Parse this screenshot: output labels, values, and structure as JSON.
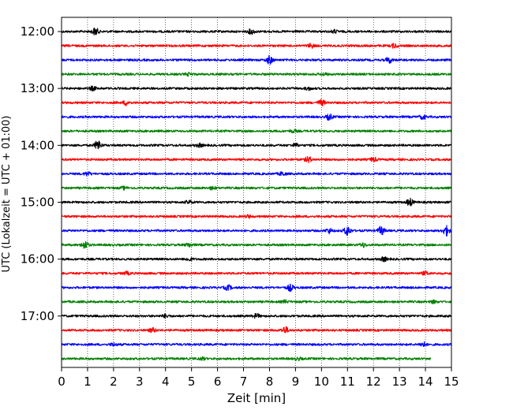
{
  "chart_data": {
    "type": "line",
    "title": "",
    "xlabel": "Zeit  [min]",
    "ylabel": "UTC (Lokalzeit = UTC + 01:00)",
    "xlim": [
      0,
      15
    ],
    "x_ticks": [
      0,
      1,
      2,
      3,
      4,
      5,
      6,
      7,
      8,
      9,
      10,
      11,
      12,
      13,
      14,
      15
    ],
    "y_tick_labels": [
      "12:00",
      "13:00",
      "14:00",
      "15:00",
      "16:00",
      "17:00"
    ],
    "grid": "vertical dotted at each minute",
    "colors": [
      "#000000",
      "#ff0000",
      "#0000ff",
      "#008000"
    ],
    "traces": [
      {
        "start": "12:00",
        "color": "#000000",
        "x_end": 15,
        "bursts": [
          [
            1.3,
            1.8
          ],
          [
            7.3,
            1.2
          ],
          [
            10.5,
            0.7
          ]
        ]
      },
      {
        "start": "12:15",
        "color": "#ff0000",
        "x_end": 15,
        "bursts": [
          [
            9.6,
            1.0
          ],
          [
            12.8,
            1.0
          ]
        ]
      },
      {
        "start": "12:30",
        "color": "#0000ff",
        "x_end": 15,
        "bursts": [
          [
            8.0,
            2.0
          ],
          [
            12.6,
            1.4
          ]
        ]
      },
      {
        "start": "12:45",
        "color": "#008000",
        "x_end": 15,
        "bursts": [
          [
            4.9,
            0.6
          ],
          [
            10.1,
            0.6
          ]
        ]
      },
      {
        "start": "13:00",
        "color": "#000000",
        "x_end": 15,
        "bursts": [
          [
            1.2,
            0.9
          ],
          [
            9.5,
            0.7
          ]
        ]
      },
      {
        "start": "13:15",
        "color": "#ff0000",
        "x_end": 15,
        "bursts": [
          [
            2.5,
            1.2
          ],
          [
            10.0,
            1.4
          ]
        ]
      },
      {
        "start": "13:30",
        "color": "#0000ff",
        "x_end": 15,
        "bursts": [
          [
            10.3,
            1.4
          ],
          [
            13.9,
            1.0
          ]
        ]
      },
      {
        "start": "13:45",
        "color": "#008000",
        "x_end": 15,
        "bursts": [
          [
            8.9,
            0.6
          ]
        ]
      },
      {
        "start": "14:00",
        "color": "#000000",
        "x_end": 15,
        "bursts": [
          [
            1.4,
            2.4
          ],
          [
            5.3,
            0.8
          ],
          [
            9.0,
            0.8
          ]
        ]
      },
      {
        "start": "14:15",
        "color": "#ff0000",
        "x_end": 15,
        "bursts": [
          [
            9.5,
            1.4
          ],
          [
            12.0,
            1.0
          ]
        ]
      },
      {
        "start": "14:30",
        "color": "#0000ff",
        "x_end": 15,
        "bursts": [
          [
            1.0,
            0.9
          ],
          [
            8.5,
            0.9
          ]
        ]
      },
      {
        "start": "14:45",
        "color": "#008000",
        "x_end": 15,
        "bursts": [
          [
            2.4,
            0.6
          ],
          [
            5.8,
            0.6
          ]
        ]
      },
      {
        "start": "15:00",
        "color": "#000000",
        "x_end": 15,
        "bursts": [
          [
            4.9,
            0.8
          ],
          [
            13.4,
            1.8
          ]
        ]
      },
      {
        "start": "15:15",
        "color": "#ff0000",
        "x_end": 15,
        "bursts": [
          [
            7.2,
            0.6
          ]
        ]
      },
      {
        "start": "15:30",
        "color": "#0000ff",
        "x_end": 15,
        "bursts": [
          [
            10.3,
            1.2
          ],
          [
            11.0,
            2.4
          ],
          [
            12.3,
            2.0
          ],
          [
            14.8,
            2.4
          ]
        ]
      },
      {
        "start": "15:45",
        "color": "#008000",
        "x_end": 15,
        "bursts": [
          [
            0.9,
            2.0
          ],
          [
            4.9,
            0.9
          ],
          [
            11.6,
            1.0
          ]
        ]
      },
      {
        "start": "16:00",
        "color": "#000000",
        "x_end": 15,
        "bursts": [
          [
            4.9,
            0.8
          ],
          [
            12.4,
            1.0
          ]
        ]
      },
      {
        "start": "16:15",
        "color": "#ff0000",
        "x_end": 15,
        "bursts": [
          [
            2.5,
            0.7
          ],
          [
            14.0,
            0.9
          ]
        ]
      },
      {
        "start": "16:30",
        "color": "#0000ff",
        "x_end": 15,
        "bursts": [
          [
            6.4,
            1.2
          ],
          [
            8.8,
            1.6
          ]
        ]
      },
      {
        "start": "16:45",
        "color": "#008000",
        "x_end": 15,
        "bursts": [
          [
            8.6,
            0.6
          ],
          [
            14.3,
            0.6
          ]
        ]
      },
      {
        "start": "17:00",
        "color": "#000000",
        "x_end": 15,
        "bursts": [
          [
            4.0,
            0.8
          ],
          [
            7.5,
            1.0
          ]
        ]
      },
      {
        "start": "17:15",
        "color": "#ff0000",
        "x_end": 15,
        "bursts": [
          [
            3.5,
            1.0
          ],
          [
            8.6,
            1.6
          ]
        ]
      },
      {
        "start": "17:30",
        "color": "#0000ff",
        "x_end": 15,
        "bursts": [
          [
            2.0,
            0.7
          ],
          [
            13.9,
            1.2
          ]
        ]
      },
      {
        "start": "17:45",
        "color": "#008000",
        "x_end": 14.2,
        "bursts": [
          [
            5.4,
            0.6
          ],
          [
            9.1,
            0.6
          ]
        ]
      }
    ]
  }
}
